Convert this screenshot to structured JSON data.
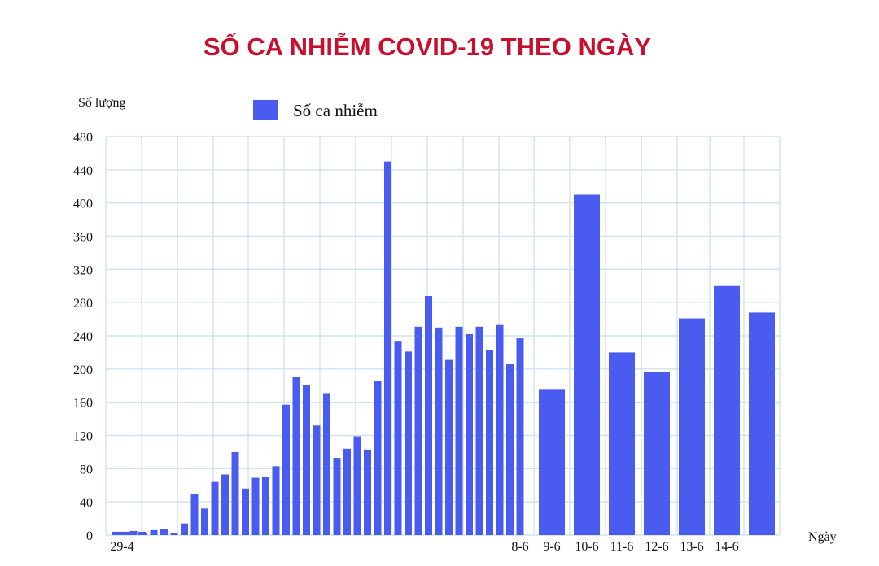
{
  "chart_data": {
    "type": "bar",
    "title": "SỐ CA NHIỄM COVID-19 THEO NGÀY",
    "ylabel": "Số lượng",
    "xlabel": "Ngày",
    "legend": {
      "label": "Số ca nhiễm",
      "placement": "top-left"
    },
    "ylim": [
      0,
      480
    ],
    "yticks": [
      0,
      40,
      80,
      120,
      160,
      200,
      240,
      280,
      320,
      360,
      400,
      440,
      480
    ],
    "grid": true,
    "bar_color": "#4a5cf0",
    "tick_labels": [
      {
        "label": "29-4",
        "index": 0
      },
      {
        "label": "8-6",
        "index": 40
      },
      {
        "label": "9-6",
        "index": 41
      },
      {
        "label": "10-6",
        "index": 42
      },
      {
        "label": "11-6",
        "index": 43
      },
      {
        "label": "12-6",
        "index": 44
      },
      {
        "label": "13-6",
        "index": 45
      },
      {
        "label": "14-6",
        "index": 46
      }
    ],
    "values": [
      4,
      4,
      5,
      2,
      6,
      7,
      2,
      14,
      50,
      32,
      64,
      73,
      100,
      56,
      69,
      70,
      83,
      157,
      191,
      181,
      132,
      171,
      93,
      104,
      119,
      103,
      186,
      450,
      234,
      221,
      251,
      288,
      250,
      211,
      251,
      242,
      251,
      223,
      253,
      206,
      237,
      176,
      410,
      220,
      196,
      261,
      300,
      268
    ]
  }
}
